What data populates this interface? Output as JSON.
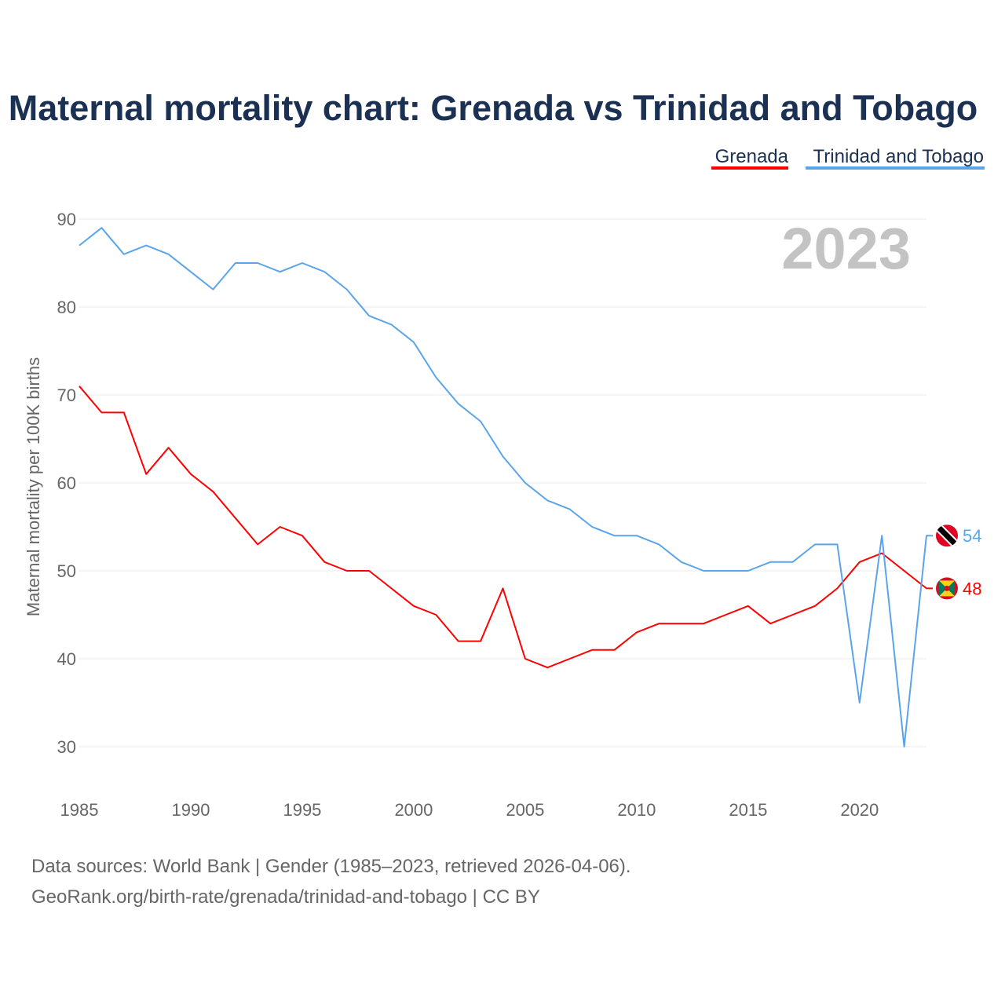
{
  "chart_data": {
    "type": "line",
    "title": "Maternal mortality chart: Grenada vs Trinidad and Tobago",
    "xlabel": "",
    "ylabel": "Maternal mortality per 100K births",
    "xlim": [
      1985,
      2023
    ],
    "ylim": [
      30,
      90
    ],
    "x_ticks": [
      1985,
      1990,
      1995,
      2000,
      2005,
      2010,
      2015,
      2020
    ],
    "y_ticks": [
      30,
      40,
      50,
      60,
      70,
      80,
      90
    ],
    "grid": true,
    "legend_position": "top-right",
    "year_watermark": "2023",
    "x": [
      1985,
      1986,
      1987,
      1988,
      1989,
      1990,
      1991,
      1992,
      1993,
      1994,
      1995,
      1996,
      1997,
      1998,
      1999,
      2000,
      2001,
      2002,
      2003,
      2004,
      2005,
      2006,
      2007,
      2008,
      2009,
      2010,
      2011,
      2012,
      2013,
      2014,
      2015,
      2016,
      2017,
      2018,
      2019,
      2020,
      2021,
      2022,
      2023
    ],
    "series": [
      {
        "name": "Grenada",
        "color": "#ff0000",
        "end_label": "48",
        "flag": "grenada-flag",
        "values": [
          71,
          68,
          68,
          61,
          64,
          61,
          59,
          56,
          53,
          55,
          54,
          51,
          50,
          50,
          48,
          46,
          45,
          42,
          42,
          48,
          40,
          39,
          40,
          41,
          41,
          43,
          44,
          44,
          44,
          45,
          46,
          44,
          45,
          46,
          48,
          51,
          52,
          50,
          48
        ]
      },
      {
        "name": "Trinidad and Tobago",
        "color": "#5aa5ea",
        "end_label": "54",
        "flag": "trinidad-flag",
        "values": [
          87,
          89,
          86,
          87,
          86,
          84,
          82,
          85,
          85,
          84,
          85,
          84,
          82,
          79,
          78,
          76,
          72,
          69,
          67,
          63,
          60,
          58,
          57,
          55,
          54,
          54,
          53,
          51,
          50,
          50,
          50,
          51,
          51,
          53,
          53,
          35,
          54,
          30,
          54
        ]
      }
    ]
  },
  "footer": {
    "line1": "Data sources: World Bank | Gender (1985–2023, retrieved 2026-04-06).",
    "line2": "GeoRank.org/birth-rate/grenada/trinidad-and-tobago | CC BY"
  }
}
